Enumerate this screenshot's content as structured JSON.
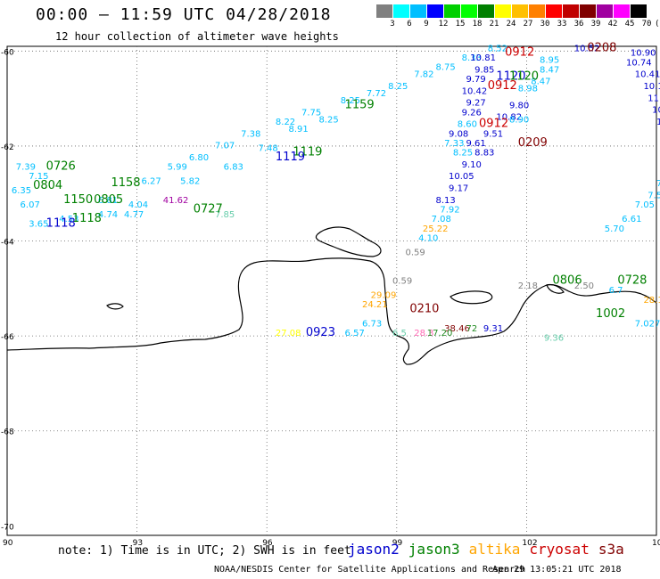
{
  "header": {
    "title": "00:00 – 11:59 UTC 04/28/2018",
    "subtitle": "12 hour collection of altimeter wave heights"
  },
  "colorbar": {
    "unit": "(ft)",
    "colors": [
      "#808080",
      "#00ffff",
      "#00bfff",
      "#0000ff",
      "#00d000",
      "#00ff00",
      "#008000",
      "#ffff00",
      "#ffc000",
      "#ff8000",
      "#ff0000",
      "#c00000",
      "#800000",
      "#a000a0",
      "#ff00ff",
      "#000000"
    ],
    "ticks": [
      "3",
      "6",
      "9",
      "12",
      "15",
      "18",
      "21",
      "24",
      "27",
      "30",
      "33",
      "36",
      "39",
      "42",
      "45",
      "70"
    ]
  },
  "axes": {
    "lat_labels": [
      "-60",
      "-62",
      "-64",
      "-66",
      "-68",
      "-70"
    ],
    "lon_labels": [
      "90",
      "93",
      "96",
      "99",
      "102",
      "105"
    ]
  },
  "tracks": [
    {
      "color": "#00bfff",
      "labels": [
        {
          "t": "8.52",
          "lon": 101.1,
          "lat": -60.0
        },
        {
          "t": "8.33",
          "lon": 100.5,
          "lat": -60.2
        },
        {
          "t": "8.75",
          "lon": 99.9,
          "lat": -60.4
        },
        {
          "t": "7.82",
          "lon": 99.4,
          "lat": -60.55
        },
        {
          "t": "8.25",
          "lon": 98.8,
          "lat": -60.8
        },
        {
          "t": "7.72",
          "lon": 98.3,
          "lat": -60.95
        },
        {
          "t": "8.25",
          "lon": 97.7,
          "lat": -61.1
        },
        {
          "t": "7.75",
          "lon": 96.8,
          "lat": -61.35
        },
        {
          "t": "8.22",
          "lon": 96.2,
          "lat": -61.55
        },
        {
          "t": "7.38",
          "lon": 95.4,
          "lat": -61.8
        },
        {
          "t": "7.07",
          "lon": 94.8,
          "lat": -62.05
        },
        {
          "t": "6.80",
          "lon": 94.2,
          "lat": -62.3
        },
        {
          "t": "5.99",
          "lon": 93.7,
          "lat": -62.5
        },
        {
          "t": "6.27",
          "lon": 93.1,
          "lat": -62.8
        },
        {
          "t": "6.81",
          "lon": 92.1,
          "lat": -63.2
        }
      ]
    },
    {
      "color": "#00bfff",
      "labels": [
        {
          "t": "8.25",
          "lon": 97.2,
          "lat": -61.5
        },
        {
          "t": "8.91",
          "lon": 96.5,
          "lat": -61.7
        },
        {
          "t": "7.48",
          "lon": 95.8,
          "lat": -62.1
        },
        {
          "t": "6.83",
          "lon": 95.0,
          "lat": -62.5
        },
        {
          "t": "5.82",
          "lon": 94.0,
          "lat": -62.8
        },
        {
          "t": "4.77",
          "lon": 92.7,
          "lat": -63.5
        }
      ]
    },
    {
      "color": "#00bfff",
      "labels": [
        {
          "t": "7.39",
          "lon": 90.2,
          "lat": -62.5
        },
        {
          "t": "7.15",
          "lon": 90.5,
          "lat": -62.7
        },
        {
          "t": "6.35",
          "lon": 90.1,
          "lat": -63.0
        },
        {
          "t": "6.07",
          "lon": 90.3,
          "lat": -63.3
        },
        {
          "t": "3.65",
          "lon": 90.5,
          "lat": -63.7
        },
        {
          "t": "4.53",
          "lon": 91.2,
          "lat": -63.6
        },
        {
          "t": "4.74",
          "lon": 92.1,
          "lat": -63.5
        },
        {
          "t": "4.04",
          "lon": 92.8,
          "lat": -63.3
        }
      ]
    },
    {
      "color": "#00bfff",
      "labels": [
        {
          "t": "7.33",
          "lon": 100.1,
          "lat": -62.0
        },
        {
          "t": "8.25",
          "lon": 100.3,
          "lat": -62.2
        },
        {
          "t": "8.60",
          "lon": 100.4,
          "lat": -61.6
        }
      ]
    },
    {
      "color": "#0000cd",
      "labels": [
        {
          "t": "10.81",
          "lon": 100.7,
          "lat": -60.2
        },
        {
          "t": "9.85",
          "lon": 100.8,
          "lat": -60.45
        },
        {
          "t": "9.79",
          "lon": 100.6,
          "lat": -60.65
        },
        {
          "t": "10.42",
          "lon": 100.5,
          "lat": -60.9
        },
        {
          "t": "9.27",
          "lon": 100.6,
          "lat": -61.15
        },
        {
          "t": "9.26",
          "lon": 100.5,
          "lat": -61.35
        },
        {
          "t": "9.08",
          "lon": 100.2,
          "lat": -61.8
        },
        {
          "t": "8.83",
          "lon": 100.8,
          "lat": -62.2
        },
        {
          "t": "9.10",
          "lon": 100.5,
          "lat": -62.45
        },
        {
          "t": "10.05",
          "lon": 100.2,
          "lat": -62.7
        },
        {
          "t": "9.17",
          "lon": 100.2,
          "lat": -62.95
        },
        {
          "t": "8.13",
          "lon": 99.9,
          "lat": -63.2
        },
        {
          "t": "9.80",
          "lon": 101.6,
          "lat": -61.2
        },
        {
          "t": "10.82",
          "lon": 101.3,
          "lat": -61.45
        },
        {
          "t": "9.51",
          "lon": 101.0,
          "lat": -61.8
        },
        {
          "t": "9.61",
          "lon": 100.6,
          "lat": -62.0
        },
        {
          "t": "9.31",
          "lon": 101.0,
          "lat": -65.9
        }
      ]
    },
    {
      "color": "#0000cd",
      "labels": [
        {
          "t": "10.52",
          "lon": 103.1,
          "lat": -60.0
        },
        {
          "t": "10.90",
          "lon": 104.4,
          "lat": -60.1
        },
        {
          "t": "10.74",
          "lon": 104.3,
          "lat": -60.3
        },
        {
          "t": "10.41",
          "lon": 104.5,
          "lat": -60.55
        },
        {
          "t": "10.11",
          "lon": 104.7,
          "lat": -60.8
        },
        {
          "t": "11.42",
          "lon": 104.8,
          "lat": -61.05
        },
        {
          "t": "10.78",
          "lon": 104.9,
          "lat": -61.3
        },
        {
          "t": "10.06",
          "lon": 105.0,
          "lat": -61.55
        },
        {
          "t": "10.",
          "lon": 105.3,
          "lat": -61.8
        }
      ]
    },
    {
      "color": "#00bfff",
      "labels": [
        {
          "t": "8.95",
          "lon": 102.3,
          "lat": -60.25
        },
        {
          "t": "8.47",
          "lon": 102.3,
          "lat": -60.45
        },
        {
          "t": "8.47",
          "lon": 102.1,
          "lat": -60.7
        },
        {
          "t": "8.98",
          "lon": 101.8,
          "lat": -60.85
        },
        {
          "t": "8.90",
          "lon": 101.6,
          "lat": -61.5
        },
        {
          "t": "7.92",
          "lon": 100.0,
          "lat": -63.4
        },
        {
          "t": "7.08",
          "lon": 99.8,
          "lat": -63.6
        },
        {
          "t": "4.10",
          "lon": 99.5,
          "lat": -64.0
        },
        {
          "t": "6.",
          "lon": 105.5,
          "lat": -62.4
        },
        {
          "t": "7.7",
          "lon": 105.3,
          "lat": -62.6
        },
        {
          "t": "7.18",
          "lon": 105.0,
          "lat": -62.85
        },
        {
          "t": "7.58",
          "lon": 104.8,
          "lat": -63.1
        },
        {
          "t": "7.05",
          "lon": 104.5,
          "lat": -63.3
        },
        {
          "t": "6.61",
          "lon": 104.2,
          "lat": -63.6
        },
        {
          "t": "5.70",
          "lon": 103.8,
          "lat": -63.8
        },
        {
          "t": "6.73",
          "lon": 98.2,
          "lat": -65.8
        },
        {
          "t": "6.57",
          "lon": 97.8,
          "lat": -66.0
        },
        {
          "t": "7.027",
          "lon": 104.5,
          "lat": -65.8
        },
        {
          "t": "6.7",
          "lon": 103.9,
          "lat": -65.1
        }
      ]
    },
    {
      "color": "#66cdaa",
      "labels": [
        {
          "t": "7.85",
          "lon": 94.8,
          "lat": -63.5
        },
        {
          "t": "6.5",
          "lon": 98.9,
          "lat": -66.0
        },
        {
          "t": "9.36",
          "lon": 102.4,
          "lat": -66.1
        }
      ]
    },
    {
      "color": "#808080",
      "labels": [
        {
          "t": "0.59",
          "lon": 99.2,
          "lat": -64.3
        },
        {
          "t": "0.59",
          "lon": 98.9,
          "lat": -64.9
        },
        {
          "t": "2.18",
          "lon": 101.8,
          "lat": -65.0
        },
        {
          "t": "2.50",
          "lon": 103.1,
          "lat": -65.0
        }
      ]
    },
    {
      "color": "#ffa500",
      "labels": [
        {
          "t": "25.22",
          "lon": 99.6,
          "lat": -63.8
        },
        {
          "t": "29.09",
          "lon": 98.4,
          "lat": -65.2
        },
        {
          "t": "24.21",
          "lon": 98.2,
          "lat": -65.4
        },
        {
          "t": "28.1",
          "lon": 104.7,
          "lat": -65.3
        }
      ]
    },
    {
      "color": "#ffff00",
      "labels": [
        {
          "t": "27.08",
          "lon": 96.2,
          "lat": -66.0
        }
      ]
    },
    {
      "color": "#a000a0",
      "labels": [
        {
          "t": "41.62",
          "lon": 93.6,
          "lat": -63.2
        }
      ]
    },
    {
      "color": "#ff69b4",
      "labels": [
        {
          "t": "28.3",
          "lon": 99.4,
          "lat": -66.0
        }
      ]
    },
    {
      "color": "#800000",
      "labels": [
        {
          "t": "38.46",
          "lon": 100.1,
          "lat": -65.9
        }
      ]
    },
    {
      "color": "#228b22",
      "labels": [
        {
          "t": "17.20",
          "lon": 99.7,
          "lat": -66.0
        },
        {
          "t": "72",
          "lon": 100.6,
          "lat": -65.9
        }
      ]
    }
  ],
  "passes": [
    {
      "t": "0912",
      "color": "#cc0000",
      "lon": 101.5,
      "lat": -60.1
    },
    {
      "t": "0208",
      "color": "#800000",
      "lon": 103.4,
      "lat": -60.0
    },
    {
      "t": "1120",
      "color": "#0000cd",
      "lon": 101.3,
      "lat": -60.6
    },
    {
      "t": "1120",
      "color": "#008000",
      "lon": 101.6,
      "lat": -60.6
    },
    {
      "t": "0912",
      "color": "#cc0000",
      "lon": 101.1,
      "lat": -60.8
    },
    {
      "t": "1159",
      "color": "#008000",
      "lon": 97.8,
      "lat": -61.2
    },
    {
      "t": "0912",
      "color": "#cc0000",
      "lon": 100.9,
      "lat": -61.6
    },
    {
      "t": "0209",
      "color": "#800000",
      "lon": 101.8,
      "lat": -62.0
    },
    {
      "t": "1119",
      "color": "#008000",
      "lon": 96.6,
      "lat": -62.2
    },
    {
      "t": "1119",
      "color": "#0000cd",
      "lon": 96.2,
      "lat": -62.3
    },
    {
      "t": "0726",
      "color": "#008000",
      "lon": 90.9,
      "lat": -62.5
    },
    {
      "t": "1158",
      "color": "#008000",
      "lon": 92.4,
      "lat": -62.85
    },
    {
      "t": "0804",
      "color": "#008000",
      "lon": 90.6,
      "lat": -62.9
    },
    {
      "t": "1150",
      "color": "#008000",
      "lon": 91.3,
      "lat": -63.2
    },
    {
      "t": "0805",
      "color": "#008000",
      "lon": 92.0,
      "lat": -63.2
    },
    {
      "t": "0727",
      "color": "#008000",
      "lon": 94.3,
      "lat": -63.4
    },
    {
      "t": "1118",
      "color": "#008000",
      "lon": 91.5,
      "lat": -63.6
    },
    {
      "t": "1118",
      "color": "#0000cd",
      "lon": 90.9,
      "lat": -63.7
    },
    {
      "t": "0210",
      "color": "#800000",
      "lon": 99.3,
      "lat": -65.5
    },
    {
      "t": "0923",
      "color": "#0000cd",
      "lon": 96.9,
      "lat": -66.0
    },
    {
      "t": "0806",
      "color": "#008000",
      "lon": 102.6,
      "lat": -64.9
    },
    {
      "t": "0728",
      "color": "#008000",
      "lon": 104.1,
      "lat": -64.9
    },
    {
      "t": "1002",
      "color": "#008000",
      "lon": 103.6,
      "lat": -65.6
    },
    {
      "t": "0",
      "color": "#008000",
      "lon": 105.5,
      "lat": -65.6
    }
  ],
  "footer": {
    "note": "note: 1) Time is in UTC; 2) SWH is in feet",
    "legend": [
      {
        "name": "jason2",
        "color": "#0000cd"
      },
      {
        "name": "jason3",
        "color": "#008000"
      },
      {
        "name": "altika",
        "color": "#ffa500"
      },
      {
        "name": "cryosat",
        "color": "#cc0000"
      },
      {
        "name": "s3a",
        "color": "#800000"
      }
    ],
    "credit": "NOAA/NESDIS Center for Satellite Applications and Research",
    "timestamp": "Apr 29 13:05:21 UTC 2018"
  }
}
